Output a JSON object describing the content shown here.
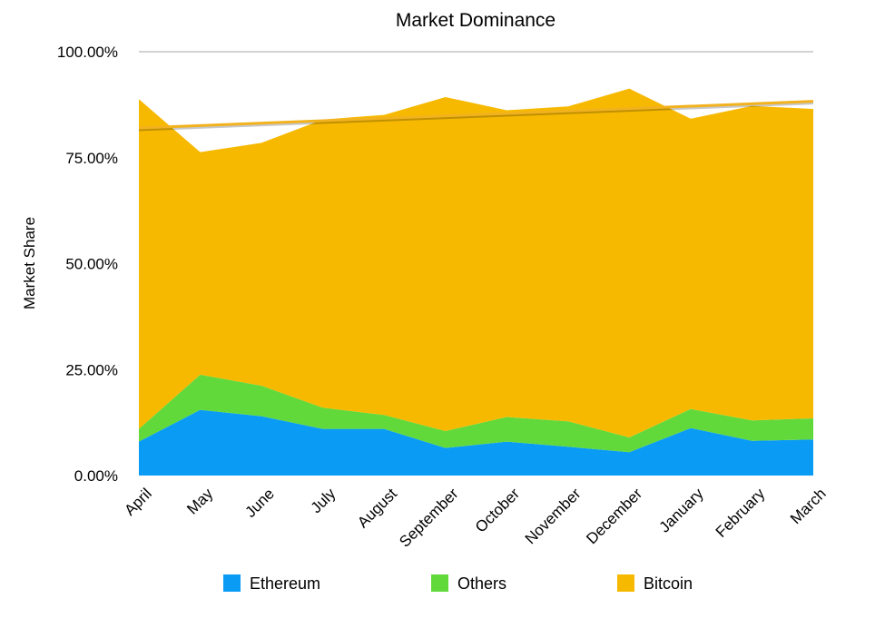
{
  "chart_data": {
    "type": "area",
    "stacked": true,
    "title": "Market Dominance",
    "xlabel": "",
    "ylabel": "Market Share",
    "categories": [
      "April",
      "May",
      "June",
      "July",
      "August",
      "September",
      "October",
      "November",
      "December",
      "January",
      "February",
      "March"
    ],
    "yticks": [
      "0.00%",
      "25.00%",
      "50.00%",
      "75.00%",
      "100.00%"
    ],
    "ylim": [
      0,
      100
    ],
    "grid": "major-y",
    "legend_position": "bottom",
    "series": [
      {
        "name": "Ethereum",
        "color": "#0a9cf5",
        "values": [
          8,
          15.5,
          14,
          11,
          11,
          6.5,
          8,
          6.8,
          5.5,
          11.2,
          8.2,
          8.5
        ]
      },
      {
        "name": "Others",
        "color": "#62d93a",
        "values": [
          3,
          8.3,
          7.2,
          5,
          3.3,
          4,
          5.8,
          6,
          3.5,
          4.5,
          4.8,
          5
        ]
      },
      {
        "name": "Bitcoin",
        "color": "#f7b900",
        "values": [
          77.8,
          52.5,
          57.3,
          68,
          70.8,
          78.8,
          72.4,
          74.3,
          82.3,
          68.5,
          74.2,
          73
        ]
      }
    ],
    "trendline": {
      "series": "Bitcoin",
      "start": 82,
      "end": 88.3,
      "color": "#f2b21e"
    }
  }
}
